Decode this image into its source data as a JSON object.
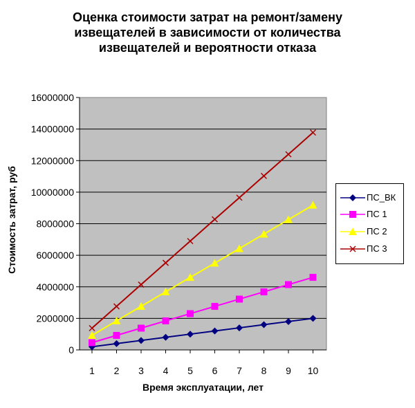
{
  "chart_data": {
    "type": "line",
    "title": [
      "Оценка стоимости затрат на ремонт/замену",
      "извещателей в зависимости от количества",
      "извещателей и вероятности отказа"
    ],
    "xlabel": "Время эксплуатации, лет",
    "ylabel": "Стоимость затрат, руб",
    "categories": [
      "1",
      "2",
      "3",
      "4",
      "5",
      "6",
      "7",
      "8",
      "9",
      "10"
    ],
    "ylim": [
      0,
      16000000
    ],
    "yticks": [
      "0",
      "2000000",
      "4000000",
      "6000000",
      "8000000",
      "10000000",
      "12000000",
      "14000000",
      "16000000"
    ],
    "ytick_values": [
      0,
      2000000,
      4000000,
      6000000,
      8000000,
      10000000,
      12000000,
      14000000,
      16000000
    ],
    "grid": true,
    "legend_position": "right",
    "plot_background": "#c0c0c0",
    "series": [
      {
        "name": "ПС_ВК",
        "color": "#000080",
        "marker": "diamond",
        "values": [
          200000,
          400000,
          600000,
          800000,
          1000000,
          1200000,
          1400000,
          1600000,
          1800000,
          2000000
        ]
      },
      {
        "name": "ПС 1",
        "color": "#ff00ff",
        "marker": "square",
        "values": [
          460000,
          920000,
          1380000,
          1840000,
          2300000,
          2760000,
          3220000,
          3680000,
          4140000,
          4600000
        ]
      },
      {
        "name": "ПС 2",
        "color": "#ffff00",
        "marker": "triangle",
        "values": [
          920000,
          1840000,
          2760000,
          3680000,
          4600000,
          5500000,
          6420000,
          7340000,
          8260000,
          9180000
        ]
      },
      {
        "name": "ПС 3",
        "color": "#aa0000",
        "marker": "x",
        "values": [
          1380000,
          2760000,
          4140000,
          5520000,
          6900000,
          8280000,
          9650000,
          11030000,
          12400000,
          13780000
        ]
      }
    ]
  }
}
